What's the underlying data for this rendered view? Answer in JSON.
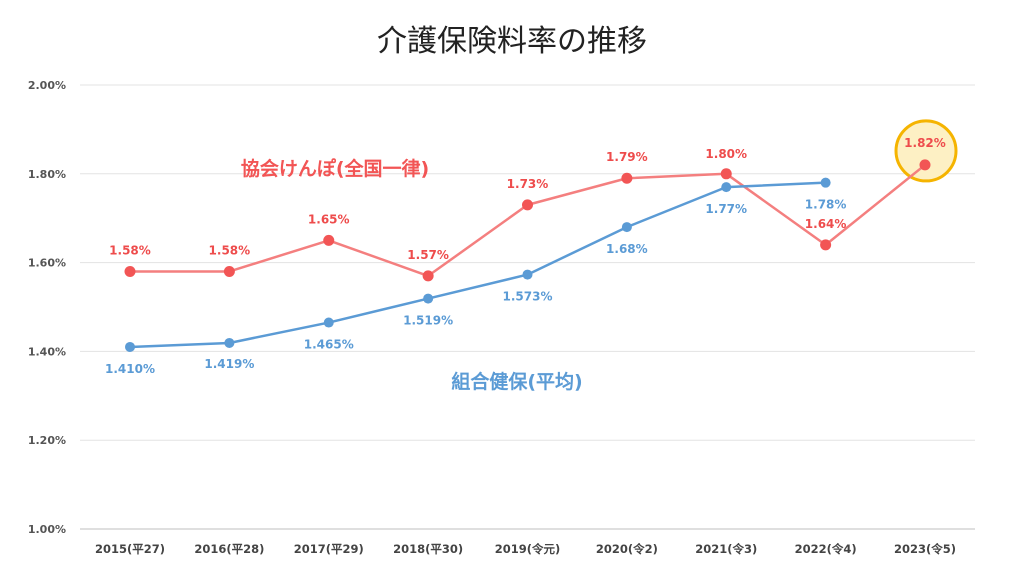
{
  "chart_data": {
    "type": "line",
    "title": "介護保険料率の推移",
    "categories": [
      "2015(平27)",
      "2016(平28)",
      "2017(平29)",
      "2018(平30)",
      "2019(令元)",
      "2020(令2)",
      "2021(令3)",
      "2022(令4)",
      "2023(令5)"
    ],
    "ylim": [
      1.0,
      2.0
    ],
    "yticks": [
      "1.00%",
      "1.20%",
      "1.40%",
      "1.60%",
      "1.80%",
      "2.00%"
    ],
    "grid": true,
    "series": [
      {
        "name": "協会けんぽ(全国一律)",
        "color": "#f47f7f",
        "marker_color": "#f25555",
        "values": [
          1.58,
          1.58,
          1.65,
          1.57,
          1.73,
          1.79,
          1.8,
          1.64,
          1.82
        ],
        "labels": [
          "1.58%",
          "1.58%",
          "1.65%",
          "1.57%",
          "1.73%",
          "1.79%",
          "1.80%",
          "1.64%",
          "1.82%"
        ]
      },
      {
        "name": "組合健保(平均)",
        "color": "#5b9bd5",
        "marker_color": "#5b9bd5",
        "values": [
          1.41,
          1.419,
          1.465,
          1.519,
          1.573,
          1.68,
          1.77,
          1.78,
          null
        ],
        "labels": [
          "1.410%",
          "1.419%",
          "1.465%",
          "1.519%",
          "1.573%",
          "1.68%",
          "1.77%",
          "1.78%",
          ""
        ]
      }
    ],
    "highlight": {
      "series": "協会けんぽ(全国一律)",
      "category": "2023(令5)",
      "value": 1.82,
      "fill": "#fdf0c4",
      "stroke": "#f5b400"
    }
  }
}
